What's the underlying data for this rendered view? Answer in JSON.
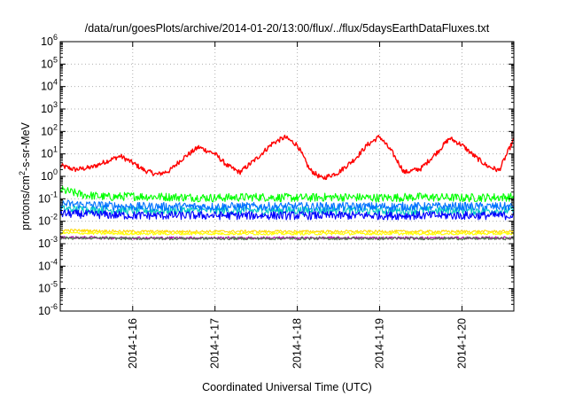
{
  "chart_data": {
    "type": "line",
    "title": "/data/run/goesPlots/archive/2014-01-20/13:00/flux/../flux/5daysEarthDataFluxes.txt",
    "xlabel": "Coordinated Universal Time (UTC)",
    "ylabel_parts": {
      "base": "protons/cm",
      "sup": "2",
      "tail": "-s-sr-MeV"
    },
    "x_unit": "days since 2014-01-15T00:00 UTC",
    "xlim": [
      0.12,
      5.63
    ],
    "ylim": [
      1e-06,
      1000000
    ],
    "log_y": true,
    "grid": true,
    "x_ticks": [
      {
        "x": 1,
        "label": "2014-1-16"
      },
      {
        "x": 2,
        "label": "2014-1-17"
      },
      {
        "x": 3,
        "label": "2014-1-18"
      },
      {
        "x": 4,
        "label": "2014-1-19"
      },
      {
        "x": 5,
        "label": "2014-1-20"
      }
    ],
    "y_ticks": [
      {
        "exp": -6,
        "label": "10",
        "sup": "-6"
      },
      {
        "exp": -5,
        "label": "10",
        "sup": "-5"
      },
      {
        "exp": -4,
        "label": "10",
        "sup": "-4"
      },
      {
        "exp": -3,
        "label": "10",
        "sup": "-3"
      },
      {
        "exp": -2,
        "label": "10",
        "sup": "-2"
      },
      {
        "exp": -1,
        "label": "10",
        "sup": "-1"
      },
      {
        "exp": 0,
        "label": "10",
        "sup": "0"
      },
      {
        "exp": 1,
        "label": "10",
        "sup": "1"
      },
      {
        "exp": 2,
        "label": "10",
        "sup": "2"
      },
      {
        "exp": 3,
        "label": "10",
        "sup": "3"
      },
      {
        "exp": 4,
        "label": "10",
        "sup": "4"
      },
      {
        "exp": 5,
        "label": "10",
        "sup": "5"
      },
      {
        "exp": 6,
        "label": "10",
        "sup": "6"
      }
    ],
    "series": [
      {
        "color": "#ff0000",
        "x": [
          0.12,
          0.3,
          0.5,
          0.7,
          0.85,
          1.0,
          1.15,
          1.3,
          1.45,
          1.6,
          1.8,
          2.0,
          2.15,
          2.3,
          2.5,
          2.7,
          2.85,
          3.0,
          3.15,
          3.3,
          3.5,
          3.7,
          3.85,
          4.0,
          4.15,
          4.3,
          4.5,
          4.7,
          4.85,
          5.0,
          5.15,
          5.3,
          5.45,
          5.63
        ],
        "y": [
          3,
          2,
          2.5,
          5,
          8,
          4,
          1.8,
          1.2,
          1.8,
          6,
          20,
          10,
          3,
          1.5,
          6,
          30,
          55,
          25,
          2,
          0.8,
          1.5,
          6,
          25,
          60,
          12,
          1.5,
          2.2,
          12,
          50,
          25,
          8,
          3,
          1.8,
          45
        ]
      },
      {
        "color": "#00ff00",
        "x": [
          0.12,
          0.4,
          0.7,
          1.0,
          1.5,
          2.0,
          2.5,
          3.0,
          3.5,
          4.0,
          4.5,
          5.0,
          5.63
        ],
        "y": [
          0.25,
          0.15,
          0.12,
          0.13,
          0.12,
          0.11,
          0.12,
          0.11,
          0.12,
          0.11,
          0.12,
          0.11,
          0.12
        ]
      },
      {
        "color": "#00c8c8",
        "x": [
          0.12,
          1.0,
          2.0,
          3.0,
          4.0,
          5.0,
          5.63
        ],
        "y": [
          0.035,
          0.03,
          0.03,
          0.03,
          0.03,
          0.03,
          0.03
        ]
      },
      {
        "color": "#0072ff",
        "x": [
          0.12,
          1.0,
          2.0,
          3.0,
          4.0,
          5.0,
          5.63
        ],
        "y": [
          0.06,
          0.045,
          0.045,
          0.045,
          0.045,
          0.045,
          0.045
        ]
      },
      {
        "color": "#0000ff",
        "x": [
          0.12,
          1.0,
          2.0,
          3.0,
          4.0,
          5.0,
          5.63
        ],
        "y": [
          0.022,
          0.018,
          0.018,
          0.018,
          0.018,
          0.018,
          0.018
        ]
      },
      {
        "color": "#ffd800",
        "x": [
          0.12,
          1.0,
          2.0,
          3.0,
          4.0,
          5.0,
          5.63
        ],
        "y": [
          0.004,
          0.0035,
          0.0035,
          0.0035,
          0.0035,
          0.0035,
          0.0035
        ]
      },
      {
        "color": "#ffff00",
        "x": [
          0.12,
          1.0,
          2.0,
          3.0,
          4.0,
          5.0,
          5.63
        ],
        "y": [
          0.003,
          0.0028,
          0.0028,
          0.0028,
          0.0028,
          0.0028,
          0.0028
        ]
      },
      {
        "color": "#b000b0",
        "x": [
          0.12,
          1.0,
          2.0,
          3.0,
          4.0,
          5.0,
          5.63
        ],
        "y": [
          0.0019,
          0.0018,
          0.0018,
          0.0018,
          0.0018,
          0.0018,
          0.0018
        ]
      },
      {
        "color": "#507050",
        "x": [
          0.12,
          1.0,
          2.0,
          3.0,
          4.0,
          5.0,
          5.63
        ],
        "y": [
          0.0018,
          0.0017,
          0.0017,
          0.0017,
          0.0017,
          0.0017,
          0.0017
        ]
      }
    ]
  }
}
